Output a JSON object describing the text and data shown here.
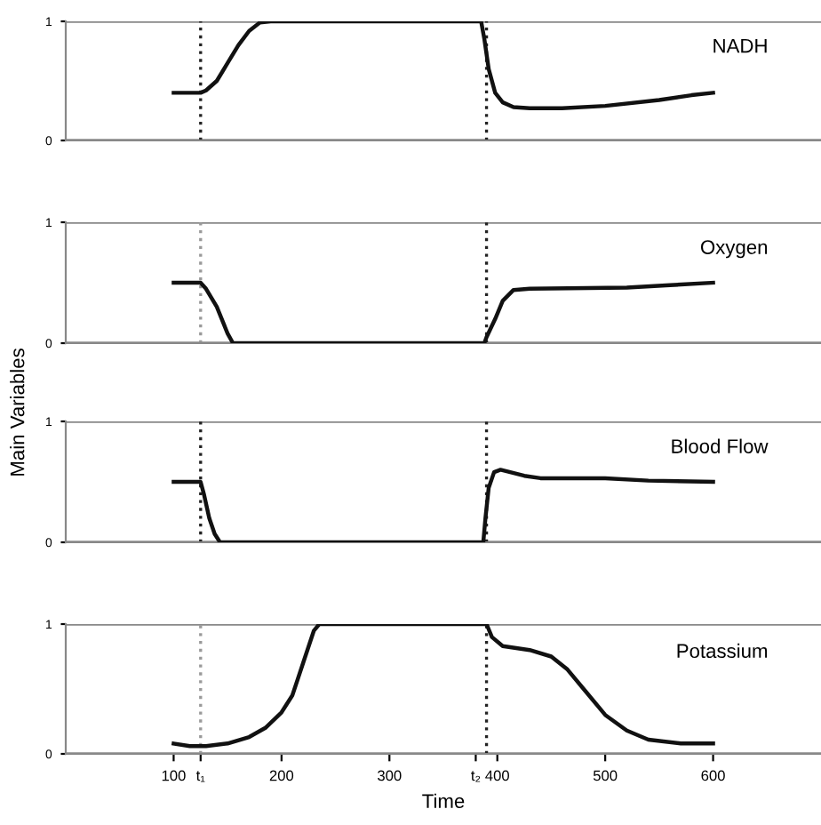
{
  "chart_data": [
    {
      "type": "line",
      "series": [
        {
          "name": "NADH",
          "color": "#111111",
          "x": [
            100,
            125,
            130,
            140,
            150,
            160,
            170,
            180,
            190,
            385,
            388,
            392,
            398,
            405,
            415,
            430,
            460,
            500,
            550,
            580,
            600
          ],
          "values": [
            0.4,
            0.4,
            0.42,
            0.5,
            0.65,
            0.8,
            0.92,
            0.99,
            1,
            1,
            0.85,
            0.6,
            0.4,
            0.32,
            0.28,
            0.27,
            0.27,
            0.29,
            0.34,
            0.38,
            0.4
          ]
        }
      ],
      "xlim": [
        0,
        700
      ],
      "ylim": [
        0,
        1
      ],
      "yticks": [
        0,
        1
      ],
      "grid": "y",
      "tick_labels": "y",
      "ref_lines": [
        {
          "axis": "x",
          "value": 125,
          "color": "#222222",
          "line_style": "dotted"
        },
        {
          "axis": "x",
          "value": 390,
          "color": "#222222",
          "line_style": "dotted"
        }
      ]
    },
    {
      "type": "line",
      "ylabel": "Main Variables",
      "series": [
        {
          "name": "Oxygen",
          "color": "#111111",
          "x": [
            100,
            125,
            130,
            140,
            150,
            155,
            388,
            390,
            398,
            405,
            415,
            430,
            520,
            560,
            600
          ],
          "values": [
            0.5,
            0.5,
            0.45,
            0.3,
            0.08,
            0,
            0,
            0.05,
            0.2,
            0.35,
            0.44,
            0.45,
            0.46,
            0.48,
            0.5
          ]
        }
      ],
      "xlim": [
        0,
        700
      ],
      "ylim": [
        0,
        1
      ],
      "yticks": [
        0,
        1
      ],
      "grid": "y",
      "tick_labels": "y",
      "ref_lines": [
        {
          "axis": "x",
          "value": 125,
          "color": "#999999",
          "line_style": "dotted"
        },
        {
          "axis": "x",
          "value": 390,
          "color": "#222222",
          "line_style": "dotted"
        }
      ]
    },
    {
      "type": "line",
      "series": [
        {
          "name": "Blood Flow",
          "color": "#111111",
          "x": [
            100,
            125,
            128,
            133,
            138,
            143,
            387,
            389,
            392,
            397,
            403,
            412,
            425,
            440,
            500,
            540,
            600
          ],
          "values": [
            0.5,
            0.5,
            0.4,
            0.2,
            0.07,
            0,
            0,
            0.2,
            0.45,
            0.58,
            0.6,
            0.58,
            0.55,
            0.53,
            0.53,
            0.51,
            0.5
          ]
        }
      ],
      "xlim": [
        0,
        700
      ],
      "ylim": [
        0,
        1
      ],
      "yticks": [
        0,
        1
      ],
      "grid": "y",
      "tick_labels": "y",
      "ref_lines": [
        {
          "axis": "x",
          "value": 125,
          "color": "#222222",
          "line_style": "dotted"
        },
        {
          "axis": "x",
          "value": 390,
          "color": "#222222",
          "line_style": "dotted"
        }
      ]
    },
    {
      "type": "line",
      "xlabel": "Time",
      "series": [
        {
          "name": "Potassium",
          "color": "#111111",
          "x": [
            100,
            115,
            130,
            150,
            170,
            185,
            200,
            210,
            220,
            230,
            235,
            390,
            395,
            405,
            430,
            450,
            465,
            480,
            500,
            520,
            540,
            570,
            600
          ],
          "values": [
            0.08,
            0.06,
            0.06,
            0.08,
            0.13,
            0.2,
            0.32,
            0.45,
            0.7,
            0.95,
            1,
            1,
            0.9,
            0.83,
            0.8,
            0.75,
            0.65,
            0.5,
            0.3,
            0.18,
            0.11,
            0.08,
            0.08
          ]
        }
      ],
      "xlim": [
        0,
        700
      ],
      "ylim": [
        0,
        1
      ],
      "yticks": [
        0,
        1
      ],
      "grid": "y",
      "xticks": [
        100,
        {
          "value": 125,
          "label": "t₁"
        },
        200,
        300,
        {
          "value": 380,
          "label": "t₂"
        },
        400,
        500,
        600
      ],
      "ref_lines": [
        {
          "axis": "x",
          "value": 125,
          "color": "#999999",
          "line_style": "dotted"
        },
        {
          "axis": "x",
          "value": 390,
          "color": "#222222",
          "line_style": "dotted"
        }
      ]
    }
  ]
}
